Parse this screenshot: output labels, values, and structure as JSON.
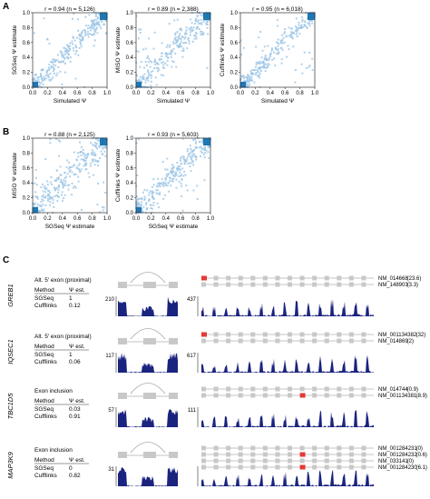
{
  "panels": {
    "a": "A",
    "b": "B",
    "c": "C"
  },
  "scatter_panels": [
    {
      "id": "a1",
      "title": "r = 0.94 (n = 5,126)",
      "xlabel": "Simulated Ψ",
      "ylabel": "SGSeq Ψ estimate",
      "r": 0.94,
      "n": 5126,
      "noise": 0.07
    },
    {
      "id": "a2",
      "title": "r = 0.89 (n = 2,388)",
      "xlabel": "Simulated Ψ",
      "ylabel": "MISO Ψ estimate",
      "r": 0.89,
      "n": 2388,
      "noise": 0.11
    },
    {
      "id": "a3",
      "title": "r = 0.95 (n = 6,018)",
      "xlabel": "Simulated Ψ",
      "ylabel": "Cufflinks Ψ estimate",
      "r": 0.95,
      "n": 6018,
      "noise": 0.07
    },
    {
      "id": "b1",
      "title": "r = 0.88 (n = 2,125)",
      "xlabel": "SGSeq Ψ estimate",
      "ylabel": "MISO Ψ estimate",
      "r": 0.88,
      "n": 2125,
      "noise": 0.13
    },
    {
      "id": "b2",
      "title": "r = 0.93 (n = 5,603)",
      "xlabel": "SGSeq Ψ estimate",
      "ylabel": "Cufflinks Ψ estimate",
      "r": 0.93,
      "n": 5603,
      "noise": 0.09
    }
  ],
  "ticks": [
    "0.0",
    "0.2",
    "0.4",
    "0.6",
    "0.8",
    "1.0"
  ],
  "genes": [
    {
      "gene": "GREB1",
      "event": "Alt. 5′ exon (proximal)",
      "method_header": "Method",
      "psi_header": "Ψ est.",
      "methods": [
        {
          "name": "SGSeq",
          "psi": "1"
        },
        {
          "name": "Cufflinks",
          "psi": "0.12"
        }
      ],
      "left_max": "210",
      "right_max": "437",
      "transcripts": [
        {
          "id": "NM_014668",
          "expr": "(23.6)"
        },
        {
          "id": "NM_148903",
          "expr": "(3.3)"
        }
      ]
    },
    {
      "gene": "IQSEC1",
      "event": "Alt. 5′ exon (proximal)",
      "method_header": "Method",
      "psi_header": "Ψ est.",
      "methods": [
        {
          "name": "SGSeq",
          "psi": "1"
        },
        {
          "name": "Cufflinks",
          "psi": "0.06"
        }
      ],
      "left_max": "117",
      "right_max": "617",
      "transcripts": [
        {
          "id": "NM_001134382",
          "expr": "(32)"
        },
        {
          "id": "NM_014869",
          "expr": "(2)"
        }
      ]
    },
    {
      "gene": "TBC1D5",
      "event": "Exon inclusion",
      "method_header": "Method",
      "psi_header": "Ψ est.",
      "methods": [
        {
          "name": "SGSeq",
          "psi": "0.03"
        },
        {
          "name": "Cufflinks",
          "psi": "0.91"
        }
      ],
      "left_max": "57",
      "right_max": "111",
      "transcripts": [
        {
          "id": "NM_014744",
          "expr": "(0.9)"
        },
        {
          "id": "NM_001134381",
          "expr": "(8.9)"
        }
      ]
    },
    {
      "gene": "MAP3K9",
      "event": "Exon inclusion",
      "method_header": "Method",
      "psi_header": "Ψ est.",
      "methods": [
        {
          "name": "SGSeq",
          "psi": "0"
        },
        {
          "name": "Cufflinks",
          "psi": "0.82"
        }
      ],
      "left_max": "31",
      "right_max": "",
      "transcripts": [
        {
          "id": "NM_001284231",
          "expr": "(0)"
        },
        {
          "id": "NM_001284232",
          "expr": "(0.6)"
        },
        {
          "id": "NM_033141",
          "expr": "(0)"
        },
        {
          "id": "NM_001284230",
          "expr": "(6.1)"
        }
      ]
    }
  ],
  "colors": {
    "point": "#9cc6e6",
    "dense": "#1f77b4",
    "coverage": "#1a237e",
    "exon": "#c8c8c8",
    "highlight": "#e53935",
    "line": "#888888"
  }
}
